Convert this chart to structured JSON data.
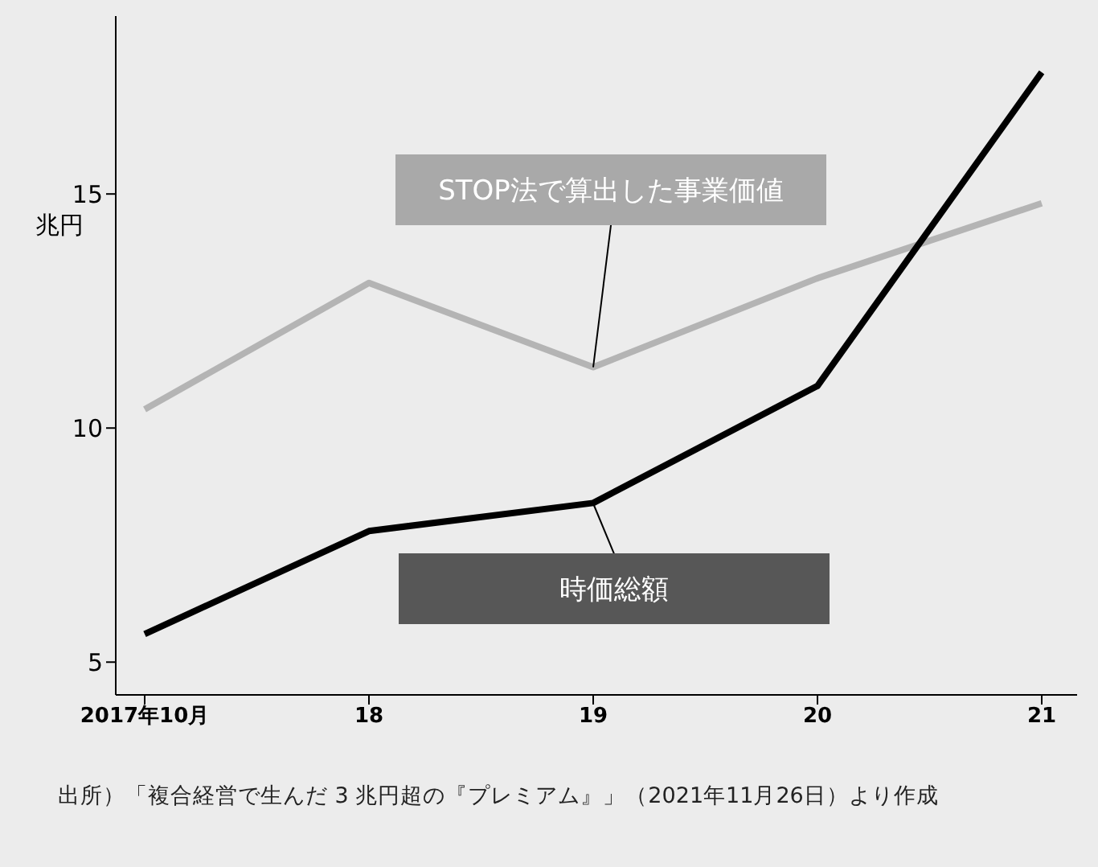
{
  "chart_data": {
    "type": "line",
    "ylabel": "兆円",
    "categories": [
      "2017年10月",
      "18",
      "19",
      "20",
      "21"
    ],
    "series": [
      {
        "name": "STOP法で算出した事業価値",
        "color": "#b4b4b4",
        "values": [
          10.4,
          13.1,
          11.3,
          13.2,
          14.8
        ]
      },
      {
        "name": "時価総額",
        "color": "#000000",
        "values": [
          5.6,
          7.8,
          8.4,
          10.9,
          17.6
        ]
      }
    ],
    "ylim": [
      4.3,
      18.8
    ],
    "yticks": [
      5,
      10,
      15
    ],
    "marker": "none",
    "line_style": "solid",
    "annotations": [
      "出所）「複合経営で生んだ 3 兆円超の『プレミアム』」（2021年11月26日）より作成"
    ]
  }
}
